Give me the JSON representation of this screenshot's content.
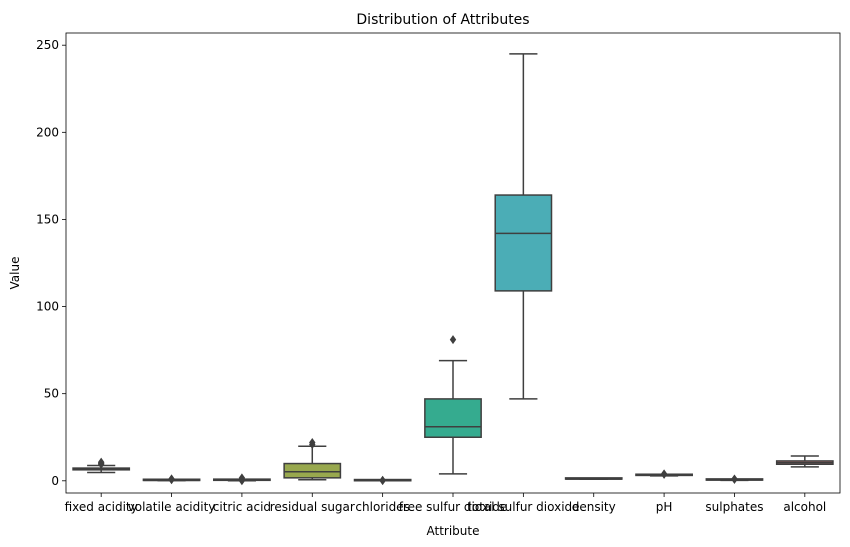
{
  "chart_data": {
    "type": "box",
    "title": "Distribution of Attributes",
    "xlabel": "Attribute",
    "ylabel": "Value",
    "ylim": [
      -7,
      257
    ],
    "yticks": [
      0,
      50,
      100,
      150,
      200,
      250
    ],
    "grid": false,
    "categories": [
      "fixed acidity",
      "volatile acidity",
      "citric acid",
      "residual sugar",
      "chlorides",
      "free sulfur dioxide",
      "total sulfur dioxide",
      "density",
      "pH",
      "sulphates",
      "alcohol"
    ],
    "boxes": [
      {
        "whisker_low": 4.8,
        "q1": 6.3,
        "median": 6.8,
        "q3": 7.3,
        "whisker_high": 8.8,
        "outliers": [
          9.4,
          9.8,
          10.2,
          10.7
        ],
        "color": "#3a73ad"
      },
      {
        "whisker_low": 0.08,
        "q1": 0.21,
        "median": 0.26,
        "q3": 0.32,
        "whisker_high": 0.49,
        "outliers": [
          0.6,
          0.8,
          1.0,
          1.1
        ],
        "color": "#cb7c34"
      },
      {
        "whisker_low": 0.0,
        "q1": 0.27,
        "median": 0.32,
        "q3": 0.39,
        "whisker_high": 0.57,
        "outliers": [
          0.0,
          0.7,
          1.0,
          1.66
        ],
        "color": "#3d9b48"
      },
      {
        "whisker_low": 0.6,
        "q1": 1.7,
        "median": 5.2,
        "q3": 9.9,
        "whisker_high": 19.8,
        "outliers": [
          20.8,
          22.0
        ],
        "color": "#98a84e"
      },
      {
        "whisker_low": 0.009,
        "q1": 0.036,
        "median": 0.043,
        "q3": 0.05,
        "whisker_high": 0.07,
        "outliers": [
          0.1,
          0.2,
          0.35
        ],
        "color": "#4b8bbf"
      },
      {
        "whisker_low": 4,
        "q1": 25,
        "median": 31,
        "q3": 47,
        "whisker_high": 69,
        "outliers": [
          81
        ],
        "color": "#35ab8f"
      },
      {
        "whisker_low": 47,
        "q1": 109,
        "median": 142,
        "q3": 164,
        "whisker_high": 245,
        "outliers": [],
        "color": "#4badb6"
      },
      {
        "whisker_low": 0.987,
        "q1": 0.992,
        "median": 0.994,
        "q3": 0.996,
        "whisker_high": 1.002,
        "outliers": [],
        "color": "#5a90c8"
      },
      {
        "whisker_low": 2.8,
        "q1": 3.09,
        "median": 3.18,
        "q3": 3.28,
        "whisker_high": 3.57,
        "outliers": [
          3.7,
          3.8,
          4.0
        ],
        "color": "#9a76b6"
      },
      {
        "whisker_low": 0.22,
        "q1": 0.41,
        "median": 0.47,
        "q3": 0.55,
        "whisker_high": 0.76,
        "outliers": [
          0.8,
          0.9,
          1.08
        ],
        "color": "#b77fa8"
      },
      {
        "whisker_low": 8.0,
        "q1": 9.5,
        "median": 10.4,
        "q3": 11.4,
        "whisker_high": 14.2,
        "outliers": [],
        "color": "#d97f7f"
      }
    ]
  }
}
